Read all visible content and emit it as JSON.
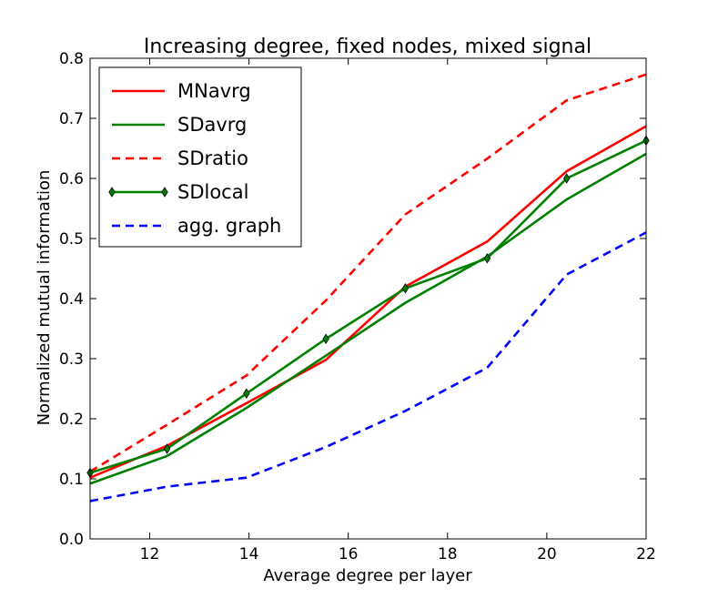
{
  "chart_data": {
    "type": "line",
    "title": "Increasing degree, fixed nodes, mixed signal",
    "xlabel": "Average degree per layer",
    "ylabel": "Normalized mutual information",
    "xlim": [
      10.8,
      22
    ],
    "ylim": [
      0.0,
      0.8
    ],
    "xticks": [
      12,
      14,
      16,
      18,
      20,
      22
    ],
    "xtick_labels": [
      "12",
      "14",
      "16",
      "18",
      "20",
      "22"
    ],
    "yticks": [
      0.0,
      0.1,
      0.2,
      0.3,
      0.4,
      0.5,
      0.6,
      0.7,
      0.8
    ],
    "ytick_labels": [
      "0.0",
      "0.1",
      "0.2",
      "0.3",
      "0.4",
      "0.5",
      "0.6",
      "0.7",
      "0.8"
    ],
    "legend_position": "top-left",
    "x": [
      10.8,
      12.35,
      13.95,
      15.55,
      17.15,
      18.8,
      20.4,
      22.0
    ],
    "series": [
      {
        "name": "MNavrg",
        "color": "#ff0000",
        "dash": "solid",
        "marker": "none",
        "values": [
          0.102,
          0.155,
          0.226,
          0.298,
          0.42,
          0.495,
          0.612,
          0.687
        ]
      },
      {
        "name": "SDavrg",
        "color": "#008000",
        "dash": "solid",
        "marker": "none",
        "values": [
          0.092,
          0.138,
          0.218,
          0.305,
          0.393,
          0.47,
          0.565,
          0.641
        ]
      },
      {
        "name": "SDratio",
        "color": "#ff0000",
        "dash": "dashed",
        "marker": "none",
        "values": [
          0.112,
          0.19,
          0.272,
          0.397,
          0.54,
          0.633,
          0.73,
          0.773
        ]
      },
      {
        "name": "SDlocal",
        "color": "#008000",
        "dash": "solid",
        "marker": "diamond",
        "values": [
          0.11,
          0.15,
          0.242,
          0.333,
          0.417,
          0.467,
          0.6,
          0.663
        ]
      },
      {
        "name": "agg. graph",
        "color": "#0000ff",
        "dash": "dashed",
        "marker": "none",
        "values": [
          0.063,
          0.087,
          0.102,
          0.153,
          0.213,
          0.285,
          0.44,
          0.51
        ]
      }
    ]
  }
}
